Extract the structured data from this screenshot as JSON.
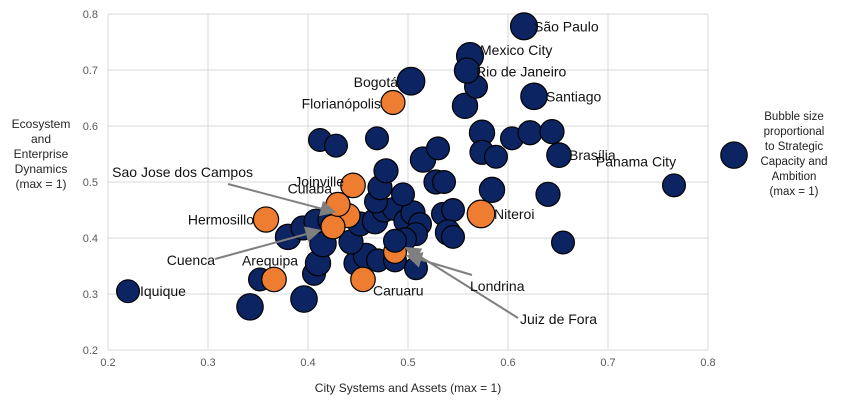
{
  "chart_data": {
    "type": "scatter",
    "xlabel": "City Systems and Assets (max = 1)",
    "ylabel": [
      "Ecosystem",
      "and",
      "Enterprise",
      "Dynamics",
      "(max = 1)"
    ],
    "xlim": [
      0.2,
      0.8
    ],
    "ylim": [
      0.2,
      0.8
    ],
    "x_ticks": [
      "0.2",
      "0.3",
      "0.4",
      "0.5",
      "0.6",
      "0.7",
      "0.8"
    ],
    "y_ticks": [
      "0.2",
      "0.3",
      "0.4",
      "0.5",
      "0.6",
      "0.7",
      "0.8"
    ],
    "grid": true,
    "size_note": [
      "Bubble size",
      "proportional",
      "to Strategic",
      "Capacity and",
      "Ambition",
      "(max = 1)"
    ],
    "colors": {
      "navy": "#0d2463",
      "orange": "#ee7d31",
      "grid": "#d9d9d9",
      "arrow": "#7f7f7f"
    },
    "labeled_points": [
      {
        "label": "São Paulo",
        "x": 0.616,
        "y": 0.778,
        "color": "navy",
        "size": 0.62
      },
      {
        "label": "Mexico City",
        "x": 0.562,
        "y": 0.725,
        "color": "navy",
        "size": 0.62
      },
      {
        "label": "Rio de Janeiro",
        "x": 0.559,
        "y": 0.699,
        "color": "navy",
        "size": 0.55
      },
      {
        "label": "Bogotá",
        "x": 0.503,
        "y": 0.68,
        "color": "navy",
        "size": 0.65
      },
      {
        "label": "Santiago",
        "x": 0.626,
        "y": 0.653,
        "color": "navy",
        "size": 0.6
      },
      {
        "label": "Florianópolis",
        "x": 0.485,
        "y": 0.642,
        "color": "orange",
        "size": 0.5
      },
      {
        "label": "Brasília",
        "x": 0.651,
        "y": 0.548,
        "color": "navy",
        "size": 0.52
      },
      {
        "label": "Panama City",
        "x": 0.766,
        "y": 0.494,
        "color": "navy",
        "size": 0.45
      },
      {
        "label": "Joinville",
        "x": 0.445,
        "y": 0.494,
        "color": "orange",
        "size": 0.52
      },
      {
        "label": "Cuiaba",
        "x": 0.43,
        "y": 0.46,
        "color": "orange",
        "size": 0.5
      },
      {
        "label": "Hermosillo",
        "x": 0.358,
        "y": 0.433,
        "color": "orange",
        "size": 0.55
      },
      {
        "label": "Niteroi",
        "x": 0.573,
        "y": 0.443,
        "color": "orange",
        "size": 0.65
      },
      {
        "label": "Arequipa",
        "x": 0.366,
        "y": 0.326,
        "color": "orange",
        "size": 0.52
      },
      {
        "label": "Caruaru",
        "x": 0.455,
        "y": 0.326,
        "color": "orange",
        "size": 0.52
      },
      {
        "label": "Iquique",
        "x": 0.22,
        "y": 0.305,
        "color": "navy",
        "size": 0.45
      }
    ],
    "arrow_labeled_points": [
      {
        "label": "Sao Jose dos Campos",
        "x": 0.44,
        "y": 0.44,
        "color": "orange",
        "size": 0.5
      },
      {
        "label": "Cuenca",
        "x": 0.425,
        "y": 0.42,
        "color": "orange",
        "size": 0.5
      },
      {
        "label": "Londrina",
        "x": 0.487,
        "y": 0.375,
        "color": "orange",
        "size": 0.45
      },
      {
        "label": "Juiz de Fora",
        "x": 0.487,
        "y": 0.395,
        "color": "navy",
        "size": 0.45
      }
    ],
    "other_points": [
      {
        "x": 0.342,
        "y": 0.277,
        "color": "navy",
        "size": 0.6
      },
      {
        "x": 0.396,
        "y": 0.291,
        "color": "navy",
        "size": 0.6
      },
      {
        "x": 0.352,
        "y": 0.326,
        "color": "navy",
        "size": 0.45
      },
      {
        "x": 0.406,
        "y": 0.336,
        "color": "navy",
        "size": 0.45
      },
      {
        "x": 0.41,
        "y": 0.355,
        "color": "navy",
        "size": 0.55
      },
      {
        "x": 0.448,
        "y": 0.355,
        "color": "navy",
        "size": 0.5
      },
      {
        "x": 0.458,
        "y": 0.368,
        "color": "navy",
        "size": 0.55
      },
      {
        "x": 0.47,
        "y": 0.36,
        "color": "navy",
        "size": 0.45
      },
      {
        "x": 0.487,
        "y": 0.36,
        "color": "navy",
        "size": 0.45
      },
      {
        "x": 0.508,
        "y": 0.346,
        "color": "navy",
        "size": 0.45
      },
      {
        "x": 0.415,
        "y": 0.39,
        "color": "navy",
        "size": 0.6
      },
      {
        "x": 0.443,
        "y": 0.393,
        "color": "navy",
        "size": 0.5
      },
      {
        "x": 0.38,
        "y": 0.402,
        "color": "navy",
        "size": 0.55
      },
      {
        "x": 0.395,
        "y": 0.418,
        "color": "navy",
        "size": 0.5
      },
      {
        "x": 0.408,
        "y": 0.43,
        "color": "navy",
        "size": 0.5
      },
      {
        "x": 0.422,
        "y": 0.432,
        "color": "navy",
        "size": 0.5
      },
      {
        "x": 0.436,
        "y": 0.442,
        "color": "navy",
        "size": 0.5
      },
      {
        "x": 0.452,
        "y": 0.425,
        "color": "navy",
        "size": 0.5
      },
      {
        "x": 0.467,
        "y": 0.43,
        "color": "navy",
        "size": 0.55
      },
      {
        "x": 0.476,
        "y": 0.45,
        "color": "navy",
        "size": 0.5
      },
      {
        "x": 0.486,
        "y": 0.452,
        "color": "navy",
        "size": 0.45
      },
      {
        "x": 0.498,
        "y": 0.43,
        "color": "navy",
        "size": 0.5
      },
      {
        "x": 0.505,
        "y": 0.445,
        "color": "navy",
        "size": 0.5
      },
      {
        "x": 0.512,
        "y": 0.425,
        "color": "navy",
        "size": 0.45
      },
      {
        "x": 0.508,
        "y": 0.407,
        "color": "navy",
        "size": 0.45
      },
      {
        "x": 0.497,
        "y": 0.398,
        "color": "navy",
        "size": 0.45
      },
      {
        "x": 0.468,
        "y": 0.465,
        "color": "navy",
        "size": 0.45
      },
      {
        "x": 0.472,
        "y": 0.49,
        "color": "navy",
        "size": 0.5
      },
      {
        "x": 0.478,
        "y": 0.52,
        "color": "navy",
        "size": 0.5
      },
      {
        "x": 0.495,
        "y": 0.478,
        "color": "navy",
        "size": 0.45
      },
      {
        "x": 0.515,
        "y": 0.54,
        "color": "navy",
        "size": 0.55
      },
      {
        "x": 0.53,
        "y": 0.56,
        "color": "navy",
        "size": 0.45
      },
      {
        "x": 0.528,
        "y": 0.5,
        "color": "navy",
        "size": 0.5
      },
      {
        "x": 0.536,
        "y": 0.5,
        "color": "navy",
        "size": 0.45
      },
      {
        "x": 0.535,
        "y": 0.443,
        "color": "navy",
        "size": 0.45
      },
      {
        "x": 0.545,
        "y": 0.45,
        "color": "navy",
        "size": 0.45
      },
      {
        "x": 0.54,
        "y": 0.41,
        "color": "navy",
        "size": 0.55
      },
      {
        "x": 0.545,
        "y": 0.402,
        "color": "navy",
        "size": 0.45
      },
      {
        "x": 0.557,
        "y": 0.636,
        "color": "navy",
        "size": 0.55
      },
      {
        "x": 0.568,
        "y": 0.67,
        "color": "navy",
        "size": 0.45
      },
      {
        "x": 0.574,
        "y": 0.588,
        "color": "navy",
        "size": 0.55
      },
      {
        "x": 0.574,
        "y": 0.553,
        "color": "navy",
        "size": 0.5
      },
      {
        "x": 0.588,
        "y": 0.545,
        "color": "navy",
        "size": 0.45
      },
      {
        "x": 0.584,
        "y": 0.486,
        "color": "navy",
        "size": 0.55
      },
      {
        "x": 0.604,
        "y": 0.578,
        "color": "navy",
        "size": 0.45
      },
      {
        "x": 0.622,
        "y": 0.588,
        "color": "navy",
        "size": 0.5
      },
      {
        "x": 0.644,
        "y": 0.59,
        "color": "navy",
        "size": 0.5
      },
      {
        "x": 0.64,
        "y": 0.478,
        "color": "navy",
        "size": 0.5
      },
      {
        "x": 0.655,
        "y": 0.392,
        "color": "navy",
        "size": 0.45
      },
      {
        "x": 0.412,
        "y": 0.575,
        "color": "navy",
        "size": 0.45
      },
      {
        "x": 0.428,
        "y": 0.565,
        "color": "navy",
        "size": 0.45
      },
      {
        "x": 0.469,
        "y": 0.578,
        "color": "navy",
        "size": 0.45
      },
      {
        "x": 0.826,
        "y": 0.548,
        "color": "navy",
        "size": 0.6
      }
    ]
  }
}
